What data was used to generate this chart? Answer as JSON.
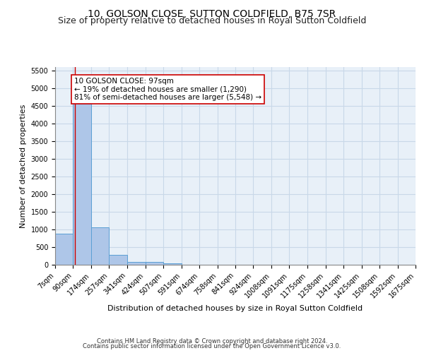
{
  "title": "10, GOLSON CLOSE, SUTTON COLDFIELD, B75 7SR",
  "subtitle": "Size of property relative to detached houses in Royal Sutton Coldfield",
  "xlabel": "Distribution of detached houses by size in Royal Sutton Coldfield",
  "ylabel": "Number of detached properties",
  "footer_line1": "Contains HM Land Registry data © Crown copyright and database right 2024.",
  "footer_line2": "Contains public sector information licensed under the Open Government Licence v3.0.",
  "bin_edges": [
    7,
    90,
    174,
    257,
    341,
    424,
    507,
    591,
    674,
    758,
    841,
    924,
    1008,
    1091,
    1175,
    1258,
    1341,
    1425,
    1508,
    1592,
    1675
  ],
  "bar_heights": [
    880,
    4560,
    1060,
    280,
    90,
    90,
    50,
    0,
    0,
    0,
    0,
    0,
    0,
    0,
    0,
    0,
    0,
    0,
    0,
    0
  ],
  "bar_color": "#aec6e8",
  "bar_edge_color": "#5a9fd4",
  "property_size": 97,
  "property_line_color": "#cc0000",
  "annotation_line1": "10 GOLSON CLOSE: 97sqm",
  "annotation_line2": "← 19% of detached houses are smaller (1,290)",
  "annotation_line3": "81% of semi-detached houses are larger (5,548) →",
  "annotation_box_color": "#ffffff",
  "annotation_box_edge_color": "#cc0000",
  "ylim": [
    0,
    5600
  ],
  "yticks": [
    0,
    500,
    1000,
    1500,
    2000,
    2500,
    3000,
    3500,
    4000,
    4500,
    5000,
    5500
  ],
  "grid_color": "#c8d8e8",
  "background_color": "#e8f0f8",
  "title_fontsize": 10,
  "subtitle_fontsize": 9,
  "tick_label_fontsize": 7,
  "ylabel_fontsize": 8,
  "xlabel_fontsize": 8,
  "annotation_fontsize": 7.5,
  "footer_fontsize": 6
}
